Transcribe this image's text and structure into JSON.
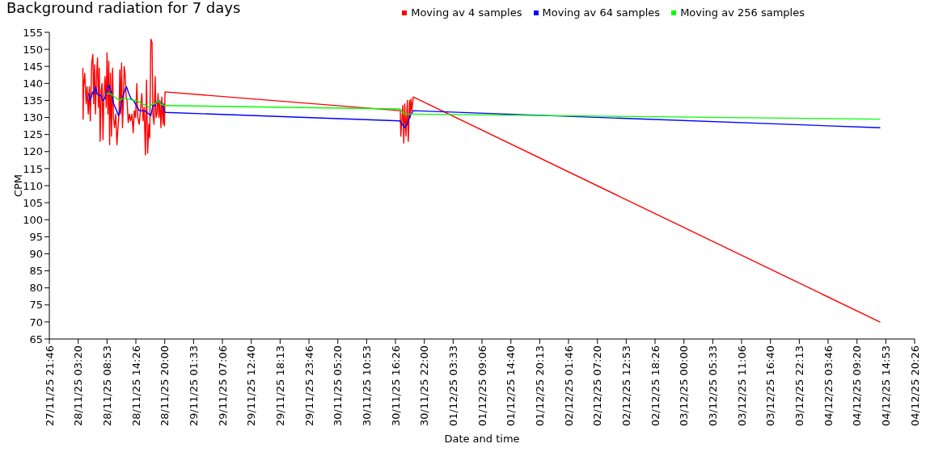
{
  "chart_data": {
    "type": "line",
    "title": "Background radiation for 7 days",
    "xlabel": "Date and time",
    "ylabel": "CPM",
    "legend": "top right",
    "xlim": [
      "--11-27T21:46",
      "--12-04T20:26"
    ],
    "xticks": [
      {
        "value": "--11-27T21:46",
        "label": "27/11/25 21:46"
      },
      {
        "value": "--11-28T03:20",
        "label": "28/11/25 03:20"
      },
      {
        "value": "--11-28T08:53",
        "label": "28/11/25 08:53"
      },
      {
        "value": "--11-28T14:26",
        "label": "28/11/25 14:26"
      },
      {
        "value": "--11-28T20:00",
        "label": "28/11/25 20:00"
      },
      {
        "value": "--11-29T01:33",
        "label": "29/11/25 01:33"
      },
      {
        "value": "--11-29T07:06",
        "label": "29/11/25 07:06"
      },
      {
        "value": "--11-29T12:40",
        "label": "29/11/25 12:40"
      },
      {
        "value": "--11-29T18:13",
        "label": "29/11/25 18:13"
      },
      {
        "value": "--11-29T23:46",
        "label": "29/11/25 23:46"
      },
      {
        "value": "--11-30T05:20",
        "label": "30/11/25 05:20"
      },
      {
        "value": "--11-30T10:53",
        "label": "30/11/25 10:53"
      },
      {
        "value": "--11-30T16:26",
        "label": "30/11/25 16:26"
      },
      {
        "value": "--11-30T22:00",
        "label": "30/11/25 22:00"
      },
      {
        "value": "--12-01T03:33",
        "label": "01/12/25 03:33"
      },
      {
        "value": "--12-01T09:06",
        "label": "01/12/25 09:06"
      },
      {
        "value": "--12-01T14:40",
        "label": "01/12/25 14:40"
      },
      {
        "value": "--12-01T20:13",
        "label": "01/12/25 20:13"
      },
      {
        "value": "--12-02T01:46",
        "label": "02/12/25 01:46"
      },
      {
        "value": "--12-02T07:20",
        "label": "02/12/25 07:20"
      },
      {
        "value": "--12-02T12:53",
        "label": "02/12/25 12:53"
      },
      {
        "value": "--12-02T18:26",
        "label": "02/12/25 18:26"
      },
      {
        "value": "--12-03T00:00",
        "label": "03/12/25 00:00"
      },
      {
        "value": "--12-03T05:33",
        "label": "03/12/25 05:33"
      },
      {
        "value": "--12-03T11:06",
        "label": "03/12/25 11:06"
      },
      {
        "value": "--12-03T16:40",
        "label": "03/12/25 16:40"
      },
      {
        "value": "--12-03T22:13",
        "label": "03/12/25 22:13"
      },
      {
        "value": "--12-04T03:46",
        "label": "04/12/25 03:46"
      },
      {
        "value": "--12-04T09:20",
        "label": "04/12/25 09:20"
      },
      {
        "value": "--12-04T14:53",
        "label": "04/12/25 14:53"
      },
      {
        "value": "--12-04T20:26",
        "label": "04/12/25 20:26"
      }
    ],
    "ylim": [
      65,
      155
    ],
    "yticks": [
      65,
      70,
      75,
      80,
      85,
      90,
      95,
      100,
      105,
      110,
      115,
      120,
      125,
      130,
      135,
      140,
      145,
      150,
      155
    ],
    "series": [
      {
        "name": "Moving av 4 samples",
        "color": "#ff0000",
        "x": [
          "--11-28T04:13",
          "--11-28T04:16",
          "--11-28T04:22",
          "--11-28T04:35",
          "--11-28T04:52",
          "--11-28T05:02",
          "--11-28T05:16",
          "--11-28T05:29",
          "--11-28T05:39",
          "--11-28T05:56",
          "--11-28T06:09",
          "--11-28T06:19",
          "--11-28T06:29",
          "--11-28T06:39",
          "--11-28T06:53",
          "--11-28T07:03",
          "--11-28T07:13",
          "--11-28T07:23",
          "--11-28T07:33",
          "--11-28T07:46",
          "--11-28T07:56",
          "--11-28T08:06",
          "--11-28T08:16",
          "--11-28T08:30",
          "--11-28T08:43",
          "--11-28T08:53",
          "--11-28T09:03",
          "--11-28T09:13",
          "--11-28T09:23",
          "--11-28T09:33",
          "--11-28T09:44",
          "--11-28T09:57",
          "--11-28T10:07",
          "--11-28T10:20",
          "--11-28T10:34",
          "--11-28T10:47",
          "--11-28T10:57",
          "--11-28T11:11",
          "--11-28T11:21",
          "--11-28T11:31",
          "--11-28T11:41",
          "--11-28T11:51",
          "--11-28T12:01",
          "--11-28T12:11",
          "--11-28T12:21",
          "--11-28T12:34",
          "--11-28T12:44",
          "--11-28T12:58",
          "--11-28T13:11",
          "--11-28T13:25",
          "--11-28T13:41",
          "--11-28T13:55",
          "--11-28T14:08",
          "--11-28T14:22",
          "--11-28T14:38",
          "--11-28T14:48",
          "--11-28T15:05",
          "--11-28T15:22",
          "--11-28T15:35",
          "--11-28T15:49",
          "--11-28T16:02",
          "--11-28T16:16",
          "--11-28T16:29",
          "--11-28T16:42",
          "--11-28T16:56",
          "--11-28T17:06",
          "--11-28T17:19",
          "--11-28T17:33",
          "--11-28T17:43",
          "--11-28T17:56",
          "--11-28T18:09",
          "--11-28T18:19",
          "--11-28T18:30",
          "--11-28T18:43",
          "--11-28T18:53",
          "--11-28T19:03",
          "--11-28T19:16",
          "--11-28T19:26",
          "--11-28T19:40",
          "--11-28T19:50",
          "--11-28T19:57",
          "--11-28T20:03",
          "--11-30T17:22",
          "--11-30T17:28",
          "--11-30T17:51",
          "--11-30T18:02",
          "--11-30T18:13",
          "--11-30T18:28",
          "--11-30T18:43",
          "--11-30T18:54",
          "--11-30T19:09",
          "--11-30T19:17",
          "--11-30T19:26",
          "--11-30T19:35",
          "--11-30T19:52",
          "--12-04T13:44"
        ],
        "values": [
          144.5,
          129.5,
          139,
          143,
          134,
          139,
          131,
          139,
          129,
          146,
          148.5,
          134,
          145.5,
          131,
          143,
          147.5,
          133,
          144.5,
          123,
          138,
          140,
          123.5,
          136,
          142,
          133,
          149,
          131,
          146.5,
          122,
          143,
          124.5,
          144.5,
          130,
          127,
          131,
          122,
          126,
          131,
          144,
          131,
          146,
          127,
          134,
          145,
          143,
          136,
          135,
          128.5,
          131,
          129,
          131,
          125.5,
          132,
          130,
          140,
          130,
          128,
          133,
          137,
          129,
          133,
          119,
          141,
          119.5,
          128,
          124,
          153,
          152,
          131,
          128,
          142,
          130,
          131,
          137,
          130,
          135,
          127,
          136,
          128,
          134,
          127.5,
          137.5,
          132,
          124.5,
          133.5,
          122.5,
          134,
          124.5,
          135,
          123,
          135,
          130,
          135.5,
          132,
          136,
          70
        ]
      },
      {
        "name": "Moving av 64 samples",
        "color": "#0000ff",
        "x": [
          "--11-28T05:22",
          "--11-28T05:36",
          "--11-28T05:52",
          "--11-28T06:06",
          "--11-28T06:23",
          "--11-28T06:43",
          "--11-28T06:56",
          "--11-28T07:20",
          "--11-28T07:40",
          "--11-28T08:03",
          "--11-28T08:27",
          "--11-28T08:50",
          "--11-28T09:17",
          "--11-28T09:44",
          "--11-28T10:10",
          "--11-28T10:44",
          "--11-28T11:07",
          "--11-28T11:31",
          "--11-28T11:54",
          "--11-28T12:18",
          "--11-28T12:38",
          "--11-28T13:05",
          "--11-28T13:31",
          "--11-28T13:58",
          "--11-28T14:32",
          "--11-28T15:05",
          "--11-28T15:39",
          "--11-28T16:05",
          "--11-28T16:32",
          "--11-28T16:59",
          "--11-28T17:19",
          "--11-28T17:43",
          "--11-28T18:09",
          "--11-28T18:36",
          "--11-28T19:03",
          "--11-28T19:33",
          "--11-28T19:53",
          "--11-28T20:07",
          "--11-30T17:16",
          "--11-30T17:43",
          "--11-30T18:10",
          "--11-30T18:40",
          "--11-30T19:14",
          "--11-30T19:52",
          "--12-04T13:44"
        ],
        "values": [
          137,
          135,
          136,
          137.5,
          137,
          139,
          137,
          136.5,
          136.5,
          135,
          135.5,
          138,
          139.5,
          137,
          134,
          132,
          130.5,
          133,
          136,
          138,
          139,
          137,
          135.5,
          135,
          133.5,
          132,
          132,
          132,
          131.5,
          131,
          130.5,
          133.5,
          133.5,
          135,
          134.5,
          134,
          132,
          131.5,
          129,
          128,
          127,
          128,
          130.5,
          132,
          127
        ]
      },
      {
        "name": "Moving av 256 samples",
        "color": "#00ff00",
        "x": [
          "--11-28T08:50",
          "--11-28T09:30",
          "--11-28T10:20",
          "--11-28T11:21",
          "--11-28T11:44",
          "--11-28T12:51",
          "--11-28T13:58",
          "--11-28T14:38",
          "--11-28T15:39",
          "--11-28T16:29",
          "--11-28T17:02",
          "--11-28T17:36",
          "--11-28T18:09",
          "--11-28T18:43",
          "--11-28T19:16",
          "--11-28T19:50",
          "--11-28T20:07",
          "--11-30T17:19",
          "--11-30T18:05",
          "--11-30T19:52",
          "--12-04T13:44"
        ],
        "values": [
          137,
          137,
          136,
          135,
          135.5,
          135.5,
          135,
          135,
          134,
          133.5,
          133,
          134,
          134,
          135,
          134,
          133.5,
          133.5,
          132.5,
          131,
          131,
          129.5
        ]
      }
    ]
  }
}
